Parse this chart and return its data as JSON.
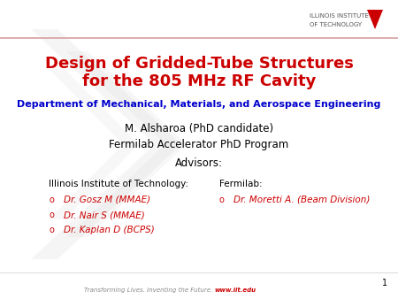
{
  "title_line1": "Design of Gridded-Tube Structures",
  "title_line2": "for the 805 MHz RF Cavity",
  "title_color": "#CC0000",
  "dept_text": "Department of Mechanical, Materials, and Aerospace Engineering",
  "dept_color": "#0000CC",
  "author_line1": "M. Alsharoa (PhD candidate)",
  "author_line2": "Fermilab Accelerator PhD Program",
  "author_color": "#000000",
  "advisors_label": "Advisors:",
  "iit_label": "Illinois Institute of Technology:",
  "iit_advisors": [
    "Dr. Gosz M (MMAE)",
    "Dr. Nair S (MMAE)",
    "Dr. Kaplan D (BCPS)"
  ],
  "fermilab_label": "Fermilab:",
  "fermilab_advisors": [
    "Dr. Moretti A. (Beam Division)"
  ],
  "bullet_color": "#CC0000",
  "advisor_text_color": "#CC0000",
  "page_number": "1",
  "footer_text": "Transforming Lives. Inventing the Future.",
  "footer_url": "www.iit.edu",
  "footer_color": "#888888",
  "footer_url_color": "#CC0000",
  "bg_color": "#ffffff",
  "header_line_color": "#D4A0A0",
  "logo_text_line1": "ILLINOIS INSTITUTE",
  "logo_text_line2": "OF TECHNOLOGY",
  "logo_color": "#555555"
}
